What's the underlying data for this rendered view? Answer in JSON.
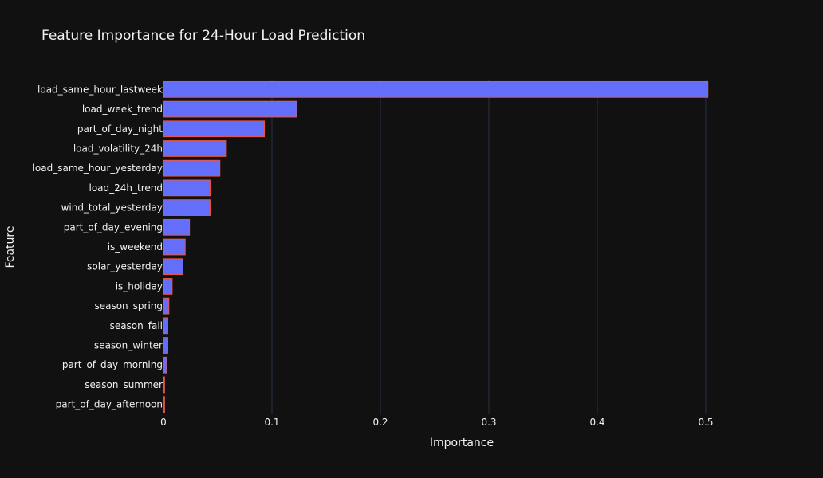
{
  "chart_data": {
    "type": "bar",
    "orientation": "horizontal",
    "title": "Feature Importance for 24-Hour Load Prediction",
    "xlabel": "Importance",
    "ylabel": "Feature",
    "xlim": [
      0,
      0.55
    ],
    "xticks": [
      0,
      0.1,
      0.2,
      0.3,
      0.4,
      0.5
    ],
    "xtick_labels": [
      "0",
      "0.1",
      "0.2",
      "0.3",
      "0.4",
      "0.5"
    ],
    "grid": true,
    "categories": [
      "load_same_hour_lastweek",
      "load_week_trend",
      "part_of_day_night",
      "load_volatility_24h",
      "load_same_hour_yesterday",
      "load_24h_trend",
      "wind_total_yesterday",
      "part_of_day_evening",
      "is_weekend",
      "solar_yesterday",
      "is_holiday",
      "season_spring",
      "season_fall",
      "season_winter",
      "part_of_day_morning",
      "season_summer",
      "part_of_day_afternoon"
    ],
    "values": [
      0.502,
      0.123,
      0.093,
      0.058,
      0.052,
      0.043,
      0.043,
      0.024,
      0.02,
      0.018,
      0.008,
      0.005,
      0.004,
      0.004,
      0.003,
      0.001,
      0.001
    ],
    "colors": {
      "background": "#111111",
      "bar_fill": "#636efa",
      "bar_outline": "#ef553b",
      "grid": "#283442",
      "text": "#f2f2f2"
    }
  }
}
